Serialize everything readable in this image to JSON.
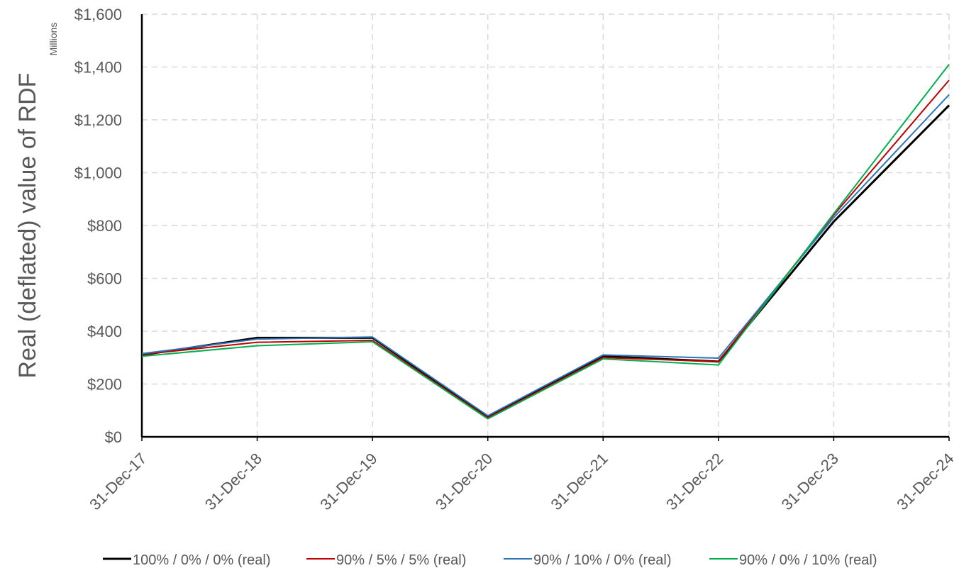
{
  "chart_data": {
    "type": "line",
    "ylabel": "Real (deflated) value of RDF",
    "y_units": "Millions",
    "ylim": [
      0,
      1600
    ],
    "y_ticks": [
      {
        "value": 0,
        "label": "$0"
      },
      {
        "value": 200,
        "label": "$200"
      },
      {
        "value": 400,
        "label": "$400"
      },
      {
        "value": 600,
        "label": "$600"
      },
      {
        "value": 800,
        "label": "$800"
      },
      {
        "value": 1000,
        "label": "$1,000"
      },
      {
        "value": 1200,
        "label": "$1,200"
      },
      {
        "value": 1400,
        "label": "$1,400"
      },
      {
        "value": 1600,
        "label": "$1,600"
      }
    ],
    "x_ticks": [
      "31-Dec-17",
      "31-Dec-18",
      "31-Dec-19",
      "31-Dec-20",
      "31-Dec-21",
      "31-Dec-22",
      "31-Dec-23",
      "31-Dec-24"
    ],
    "grid": true,
    "legend_position": "bottom",
    "series": [
      {
        "name": "100% / 0% / 0% (real)",
        "color": "#000000",
        "x": [
          "31-Dec-17",
          "31-Dec-18",
          "31-Dec-19",
          "31-Dec-20",
          "31-Dec-21",
          "31-Dec-22",
          "31-Dec-23",
          "31-Dec-24"
        ],
        "values": [
          310,
          375,
          375,
          75,
          305,
          285,
          815,
          1255
        ]
      },
      {
        "name": "90% / 5% / 5% (real)",
        "color": "#c00000",
        "x": [
          "31-Dec-17",
          "31-Dec-18",
          "31-Dec-19",
          "31-Dec-20",
          "31-Dec-21",
          "31-Dec-22",
          "31-Dec-23",
          "31-Dec-24"
        ],
        "values": [
          312,
          358,
          365,
          72,
          300,
          285,
          840,
          1350
        ]
      },
      {
        "name": "90% / 10% / 0% (real)",
        "color": "#2e75b6",
        "x": [
          "31-Dec-17",
          "31-Dec-18",
          "31-Dec-19",
          "31-Dec-20",
          "31-Dec-21",
          "31-Dec-22",
          "31-Dec-23",
          "31-Dec-24"
        ],
        "values": [
          315,
          370,
          378,
          80,
          310,
          298,
          830,
          1295
        ]
      },
      {
        "name": "90% / 0% / 10% (real)",
        "color": "#00b050",
        "x": [
          "31-Dec-17",
          "31-Dec-18",
          "31-Dec-19",
          "31-Dec-20",
          "31-Dec-21",
          "31-Dec-22",
          "31-Dec-23",
          "31-Dec-24"
        ],
        "values": [
          305,
          345,
          360,
          68,
          295,
          272,
          845,
          1410
        ]
      }
    ]
  }
}
